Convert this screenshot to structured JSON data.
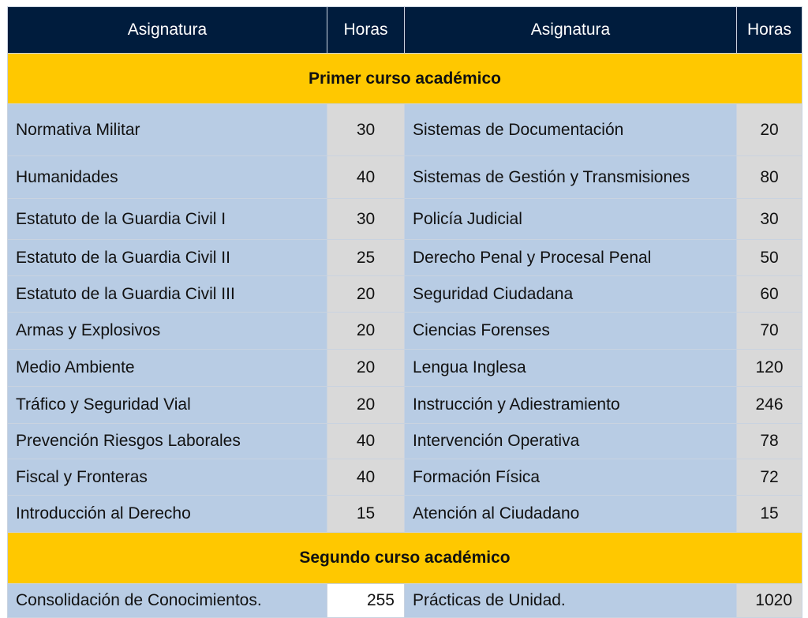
{
  "header": {
    "col1": "Asignatura",
    "col2": "Horas",
    "col3": "Asignatura",
    "col4": "Horas"
  },
  "sections": [
    {
      "title": "Primer curso académico",
      "rows": [
        [
          "Normativa Militar",
          "30",
          "Sistemas de Documentación",
          "20"
        ],
        [
          "Humanidades",
          "40",
          "Sistemas de Gestión y Transmisiones",
          "80"
        ],
        [
          "Estatuto de la Guardia Civil I",
          "30",
          "Policía Judicial",
          "30"
        ],
        [
          "Estatuto de la Guardia Civil II",
          "25",
          "Derecho Penal y Procesal Penal",
          "50"
        ],
        [
          "Estatuto de la Guardia Civil III",
          "20",
          "Seguridad Ciudadana",
          "60"
        ],
        [
          "Armas y Explosivos",
          "20",
          "Ciencias Forenses",
          "70"
        ],
        [
          "Medio Ambiente",
          "20",
          "Lengua Inglesa",
          "120"
        ],
        [
          "Tráfico y Seguridad Vial",
          "20",
          "Instrucción y Adiestramiento",
          "246"
        ],
        [
          "Prevención Riesgos Laborales",
          "40",
          "Intervención Operativa",
          "78"
        ],
        [
          "Fiscal y Fronteras",
          "40",
          "Formación Física",
          "72"
        ],
        [
          "Introducción al Derecho",
          "15",
          "Atención al Ciudadano",
          "15"
        ]
      ]
    },
    {
      "title": "Segundo curso académico",
      "rows": [
        [
          "Consolidación de Conocimientos.",
          "255",
          "Prácticas de Unidad.",
          "1020"
        ]
      ]
    }
  ],
  "colors": {
    "header": "#001c3d",
    "section": "#ffc800",
    "subject": "#b8cce4",
    "hours": "#d9d9d9"
  }
}
